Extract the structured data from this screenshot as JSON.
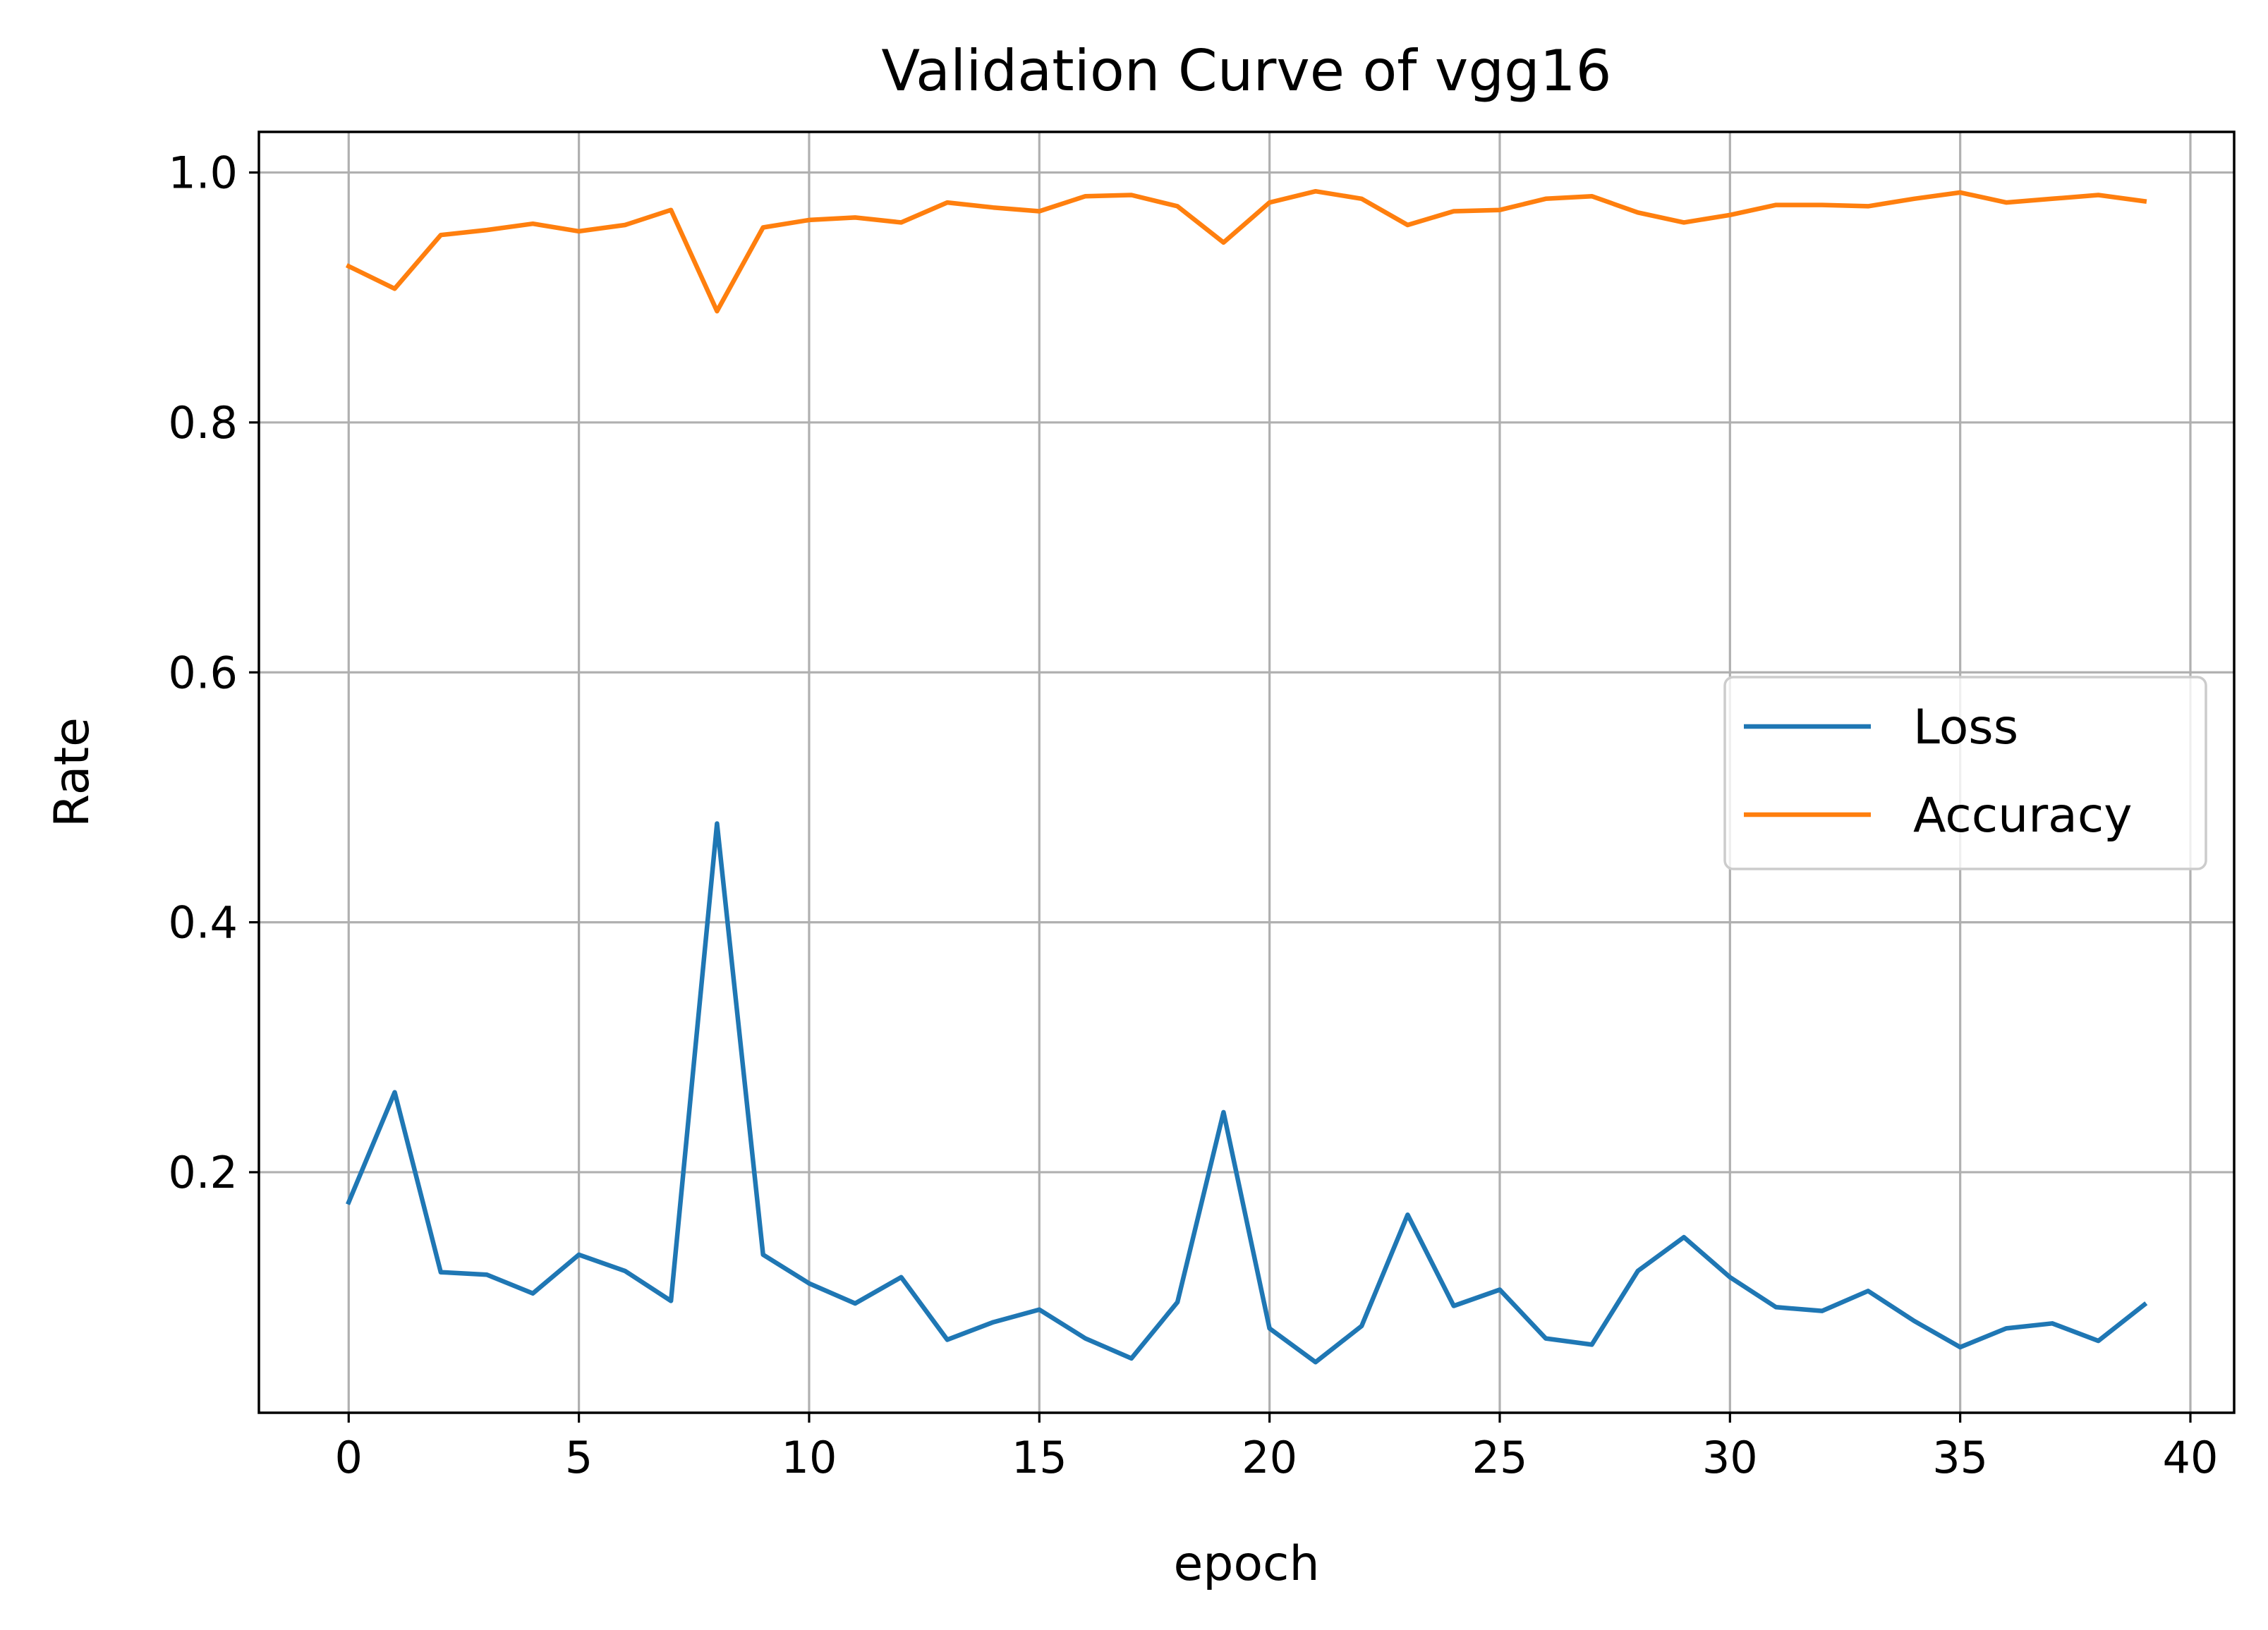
{
  "chart_data": {
    "type": "line",
    "title": "Validation Curve of vgg16",
    "xlabel": "epoch",
    "ylabel": "Rate",
    "xlim": [
      -1.95,
      40.95
    ],
    "ylim": [
      0.0075,
      1.0325
    ],
    "xticks": [
      0,
      5,
      10,
      15,
      20,
      25,
      30,
      35,
      40
    ],
    "xtick_labels": [
      "0",
      "5",
      "10",
      "15",
      "20",
      "25",
      "30",
      "35",
      "40"
    ],
    "yticks": [
      0.2,
      0.4,
      0.6,
      0.8,
      1.0
    ],
    "ytick_labels": [
      "0.2",
      "0.4",
      "0.6",
      "0.8",
      "1.0"
    ],
    "grid": true,
    "legend_position": "center-right",
    "x": [
      0,
      1,
      2,
      3,
      4,
      5,
      6,
      7,
      8,
      9,
      10,
      11,
      12,
      13,
      14,
      15,
      16,
      17,
      18,
      19,
      20,
      21,
      22,
      23,
      24,
      25,
      26,
      27,
      28,
      29,
      30,
      31,
      32,
      33,
      34,
      35,
      36,
      37,
      38,
      39
    ],
    "series": [
      {
        "name": "Loss",
        "color": "#1f77b4",
        "values": [
          0.176,
          0.264,
          0.12,
          0.118,
          0.103,
          0.134,
          0.121,
          0.097,
          0.479,
          0.134,
          0.111,
          0.095,
          0.116,
          0.066,
          0.08,
          0.09,
          0.067,
          0.051,
          0.096,
          0.248,
          0.075,
          0.048,
          0.077,
          0.166,
          0.093,
          0.106,
          0.067,
          0.062,
          0.121,
          0.148,
          0.116,
          0.092,
          0.089,
          0.105,
          0.081,
          0.06,
          0.075,
          0.079,
          0.065,
          0.094
        ]
      },
      {
        "name": "Accuracy",
        "color": "#ff7f0e",
        "values": [
          0.925,
          0.907,
          0.95,
          0.954,
          0.959,
          0.953,
          0.958,
          0.97,
          0.889,
          0.956,
          0.962,
          0.964,
          0.96,
          0.976,
          0.972,
          0.969,
          0.981,
          0.982,
          0.973,
          0.944,
          0.976,
          0.985,
          0.979,
          0.958,
          0.969,
          0.97,
          0.979,
          0.981,
          0.968,
          0.96,
          0.966,
          0.974,
          0.974,
          0.973,
          0.979,
          0.984,
          0.976,
          0.979,
          0.982,
          0.977
        ]
      }
    ]
  }
}
